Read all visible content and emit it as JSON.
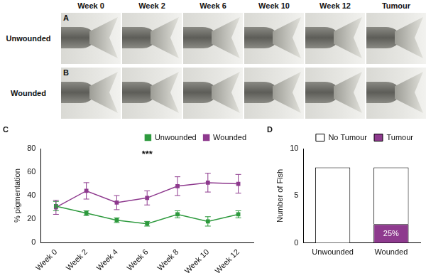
{
  "image_grid": {
    "columns": [
      "Week 0",
      "Week 2",
      "Week 6",
      "Week 10",
      "Week 12",
      "Tumour"
    ],
    "rows": [
      {
        "panel": "A",
        "label": "Unwounded"
      },
      {
        "panel": "B",
        "label": "Wounded"
      }
    ]
  },
  "chart_panels": [
    "C",
    "D"
  ],
  "chart_data": [
    {
      "type": "line",
      "categories": [
        "Week 0",
        "Week 2",
        "Week 4",
        "Week 6",
        "Week 8",
        "Week 10",
        "Week 12"
      ],
      "y_label": "% pigmentation",
      "annotations": [
        "***"
      ],
      "series": [
        {
          "name": "Unwounded",
          "color": "#2e9a3e",
          "marker": "square",
          "values": [
            31,
            25,
            19,
            16,
            24,
            18,
            24
          ],
          "errors": [
            4,
            2,
            2,
            2,
            3,
            4,
            3
          ]
        },
        {
          "name": "Wounded",
          "color": "#8e3a8e",
          "marker": "square",
          "values": [
            30,
            44,
            34,
            38,
            48,
            51,
            50
          ],
          "errors": [
            6,
            7,
            6,
            6,
            8,
            8,
            8
          ]
        }
      ],
      "ylim": [
        0,
        80
      ],
      "yticks": [
        0,
        20,
        40,
        60,
        80
      ],
      "grid": false,
      "legend": "upper right"
    },
    {
      "type": "bar",
      "stacked": true,
      "categories": [
        "Unwounded",
        "Wounded"
      ],
      "y_label": "Number of Fish",
      "annotations": [
        "25%"
      ],
      "series": [
        {
          "name": "Tumour",
          "color": "#8e3a8e",
          "values": [
            0,
            2
          ]
        },
        {
          "name": "No Tumour",
          "color": "#ffffff",
          "values": [
            8,
            6
          ]
        }
      ],
      "ylim": [
        0,
        10
      ],
      "yticks": [
        0,
        5,
        10
      ],
      "grid": false,
      "legend": "upper right"
    }
  ]
}
